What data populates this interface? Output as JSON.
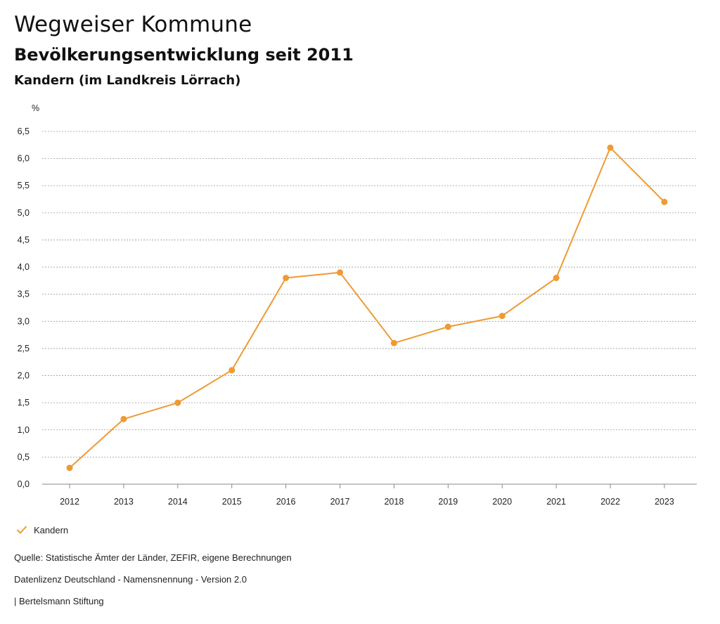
{
  "header": {
    "title": "Wegweiser Kommune",
    "subtitle": "Bevölkerungsentwicklung seit 2011",
    "region": "Kandern (im Landkreis Lörrach)"
  },
  "colors": {
    "series": "#ef9a33",
    "grid": "#9a9a9a"
  },
  "chart_data": {
    "type": "line",
    "title": "Bevölkerungsentwicklung seit 2011",
    "xlabel": "",
    "ylabel": "%",
    "categories": [
      "2012",
      "2013",
      "2014",
      "2015",
      "2016",
      "2017",
      "2018",
      "2019",
      "2020",
      "2021",
      "2022",
      "2023"
    ],
    "series": [
      {
        "name": "Kandern",
        "values": [
          0.3,
          1.2,
          1.5,
          2.1,
          3.8,
          3.9,
          2.6,
          2.9,
          3.1,
          3.8,
          6.2,
          5.2
        ]
      }
    ],
    "ylim": [
      0,
      6.5
    ],
    "y_ticks": [
      "0,0",
      "0,5",
      "1,0",
      "1,5",
      "2,0",
      "2,5",
      "3,0",
      "3,5",
      "4,0",
      "4,5",
      "5,0",
      "5,5",
      "6,0",
      "6,5"
    ],
    "grid": true,
    "legend_position": "bottom-left"
  },
  "legend": {
    "label": "Kandern",
    "icon": "check-icon"
  },
  "footer": {
    "source": "Quelle: Statistische Ämter der Länder, ZEFIR, eigene Berechnungen",
    "license": "Datenlizenz Deutschland - Namensnennung - Version 2.0",
    "brand": "| Bertelsmann Stiftung"
  }
}
